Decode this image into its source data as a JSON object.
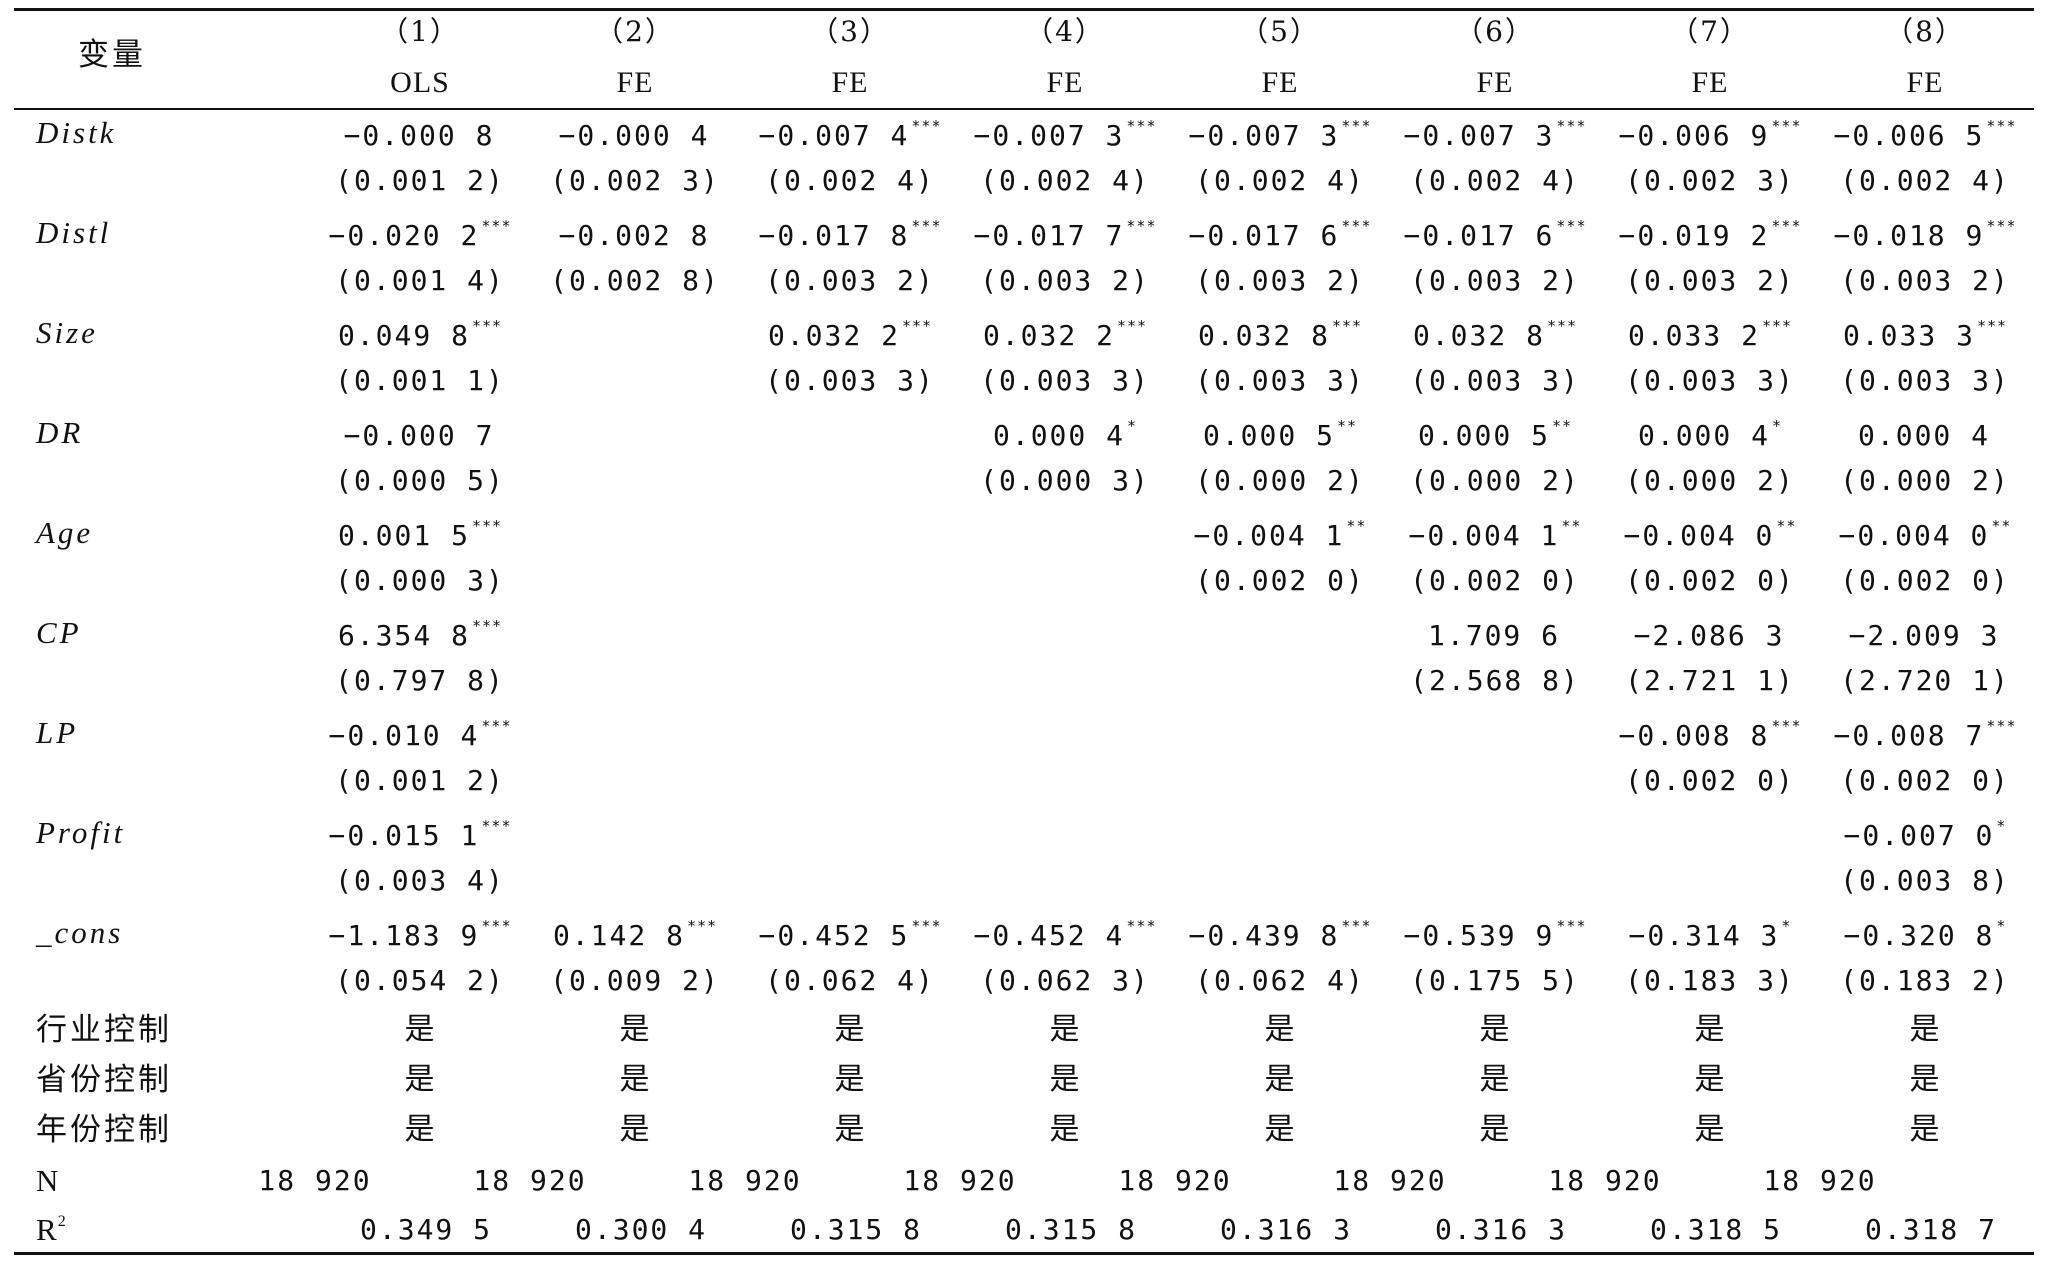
{
  "table": {
    "header": {
      "var_label": "变量",
      "col_nums": [
        "（1）",
        "（2）",
        "（3）",
        "（4）",
        "（5）",
        "（6）",
        "（7）",
        "（8）"
      ],
      "models": [
        "OLS",
        "FE",
        "FE",
        "FE",
        "FE",
        "FE",
        "FE",
        "FE"
      ]
    },
    "rows": [
      {
        "label": "Distk",
        "coef": [
          {
            "v": "−0.000 8",
            "s": ""
          },
          {
            "v": "−0.000 4",
            "s": ""
          },
          {
            "v": "−0.007 4",
            "s": "***"
          },
          {
            "v": "−0.007 3",
            "s": "***"
          },
          {
            "v": "−0.007 3",
            "s": "***"
          },
          {
            "v": "−0.007 3",
            "s": "***"
          },
          {
            "v": "−0.006 9",
            "s": "***"
          },
          {
            "v": "−0.006 5",
            "s": "***"
          }
        ],
        "se": [
          "(0.001 2)",
          "(0.002 3)",
          "(0.002 4)",
          "(0.002 4)",
          "(0.002 4)",
          "(0.002 4)",
          "(0.002 3)",
          "(0.002 4)"
        ]
      },
      {
        "label": "Distl",
        "coef": [
          {
            "v": "−0.020 2",
            "s": "***"
          },
          {
            "v": "−0.002 8",
            "s": ""
          },
          {
            "v": "−0.017 8",
            "s": "***"
          },
          {
            "v": "−0.017 7",
            "s": "***"
          },
          {
            "v": "−0.017 6",
            "s": "***"
          },
          {
            "v": "−0.017 6",
            "s": "***"
          },
          {
            "v": "−0.019 2",
            "s": "***"
          },
          {
            "v": "−0.018 9",
            "s": "***"
          }
        ],
        "se": [
          "(0.001 4)",
          "(0.002 8)",
          "(0.003 2)",
          "(0.003 2)",
          "(0.003 2)",
          "(0.003 2)",
          "(0.003 2)",
          "(0.003 2)"
        ]
      },
      {
        "label": "Size",
        "coef": [
          {
            "v": "0.049 8",
            "s": "***"
          },
          {
            "v": "",
            "s": ""
          },
          {
            "v": "0.032 2",
            "s": "***"
          },
          {
            "v": "0.032 2",
            "s": "***"
          },
          {
            "v": "0.032 8",
            "s": "***"
          },
          {
            "v": "0.032 8",
            "s": "***"
          },
          {
            "v": "0.033 2",
            "s": "***"
          },
          {
            "v": "0.033 3",
            "s": "***"
          }
        ],
        "se": [
          "(0.001 1)",
          "",
          "(0.003 3)",
          "(0.003 3)",
          "(0.003 3)",
          "(0.003 3)",
          "(0.003 3)",
          "(0.003 3)"
        ]
      },
      {
        "label": "DR",
        "coef": [
          {
            "v": "−0.000 7",
            "s": ""
          },
          {
            "v": "",
            "s": ""
          },
          {
            "v": "",
            "s": ""
          },
          {
            "v": "0.000 4",
            "s": "*"
          },
          {
            "v": "0.000 5",
            "s": "**"
          },
          {
            "v": "0.000 5",
            "s": "**"
          },
          {
            "v": "0.000 4",
            "s": "*"
          },
          {
            "v": "0.000 4",
            "s": ""
          }
        ],
        "se": [
          "(0.000 5)",
          "",
          "",
          "(0.000 3)",
          "(0.000 2)",
          "(0.000 2)",
          "(0.000 2)",
          "(0.000 2)"
        ]
      },
      {
        "label": "Age",
        "coef": [
          {
            "v": "0.001 5",
            "s": "***"
          },
          {
            "v": "",
            "s": ""
          },
          {
            "v": "",
            "s": ""
          },
          {
            "v": "",
            "s": ""
          },
          {
            "v": "−0.004 1",
            "s": "**"
          },
          {
            "v": "−0.004 1",
            "s": "**"
          },
          {
            "v": "−0.004 0",
            "s": "**"
          },
          {
            "v": "−0.004 0",
            "s": "**"
          }
        ],
        "se": [
          "(0.000 3)",
          "",
          "",
          "",
          "(0.002 0)",
          "(0.002 0)",
          "(0.002 0)",
          "(0.002 0)"
        ]
      },
      {
        "label": "CP",
        "coef": [
          {
            "v": "6.354 8",
            "s": "***"
          },
          {
            "v": "",
            "s": ""
          },
          {
            "v": "",
            "s": ""
          },
          {
            "v": "",
            "s": ""
          },
          {
            "v": "",
            "s": ""
          },
          {
            "v": "1.709 6",
            "s": ""
          },
          {
            "v": "−2.086 3",
            "s": ""
          },
          {
            "v": "−2.009 3",
            "s": ""
          }
        ],
        "se": [
          "(0.797 8)",
          "",
          "",
          "",
          "",
          "(2.568 8)",
          "(2.721 1)",
          "(2.720 1)"
        ]
      },
      {
        "label": "LP",
        "coef": [
          {
            "v": "−0.010 4",
            "s": "***"
          },
          {
            "v": "",
            "s": ""
          },
          {
            "v": "",
            "s": ""
          },
          {
            "v": "",
            "s": ""
          },
          {
            "v": "",
            "s": ""
          },
          {
            "v": "",
            "s": ""
          },
          {
            "v": "−0.008 8",
            "s": "***"
          },
          {
            "v": "−0.008 7",
            "s": "***"
          }
        ],
        "se": [
          "(0.001 2)",
          "",
          "",
          "",
          "",
          "",
          "(0.002 0)",
          "(0.002 0)"
        ]
      },
      {
        "label": "Profit",
        "coef": [
          {
            "v": "−0.015 1",
            "s": "***"
          },
          {
            "v": "",
            "s": ""
          },
          {
            "v": "",
            "s": ""
          },
          {
            "v": "",
            "s": ""
          },
          {
            "v": "",
            "s": ""
          },
          {
            "v": "",
            "s": ""
          },
          {
            "v": "",
            "s": ""
          },
          {
            "v": "−0.007 0",
            "s": "*"
          }
        ],
        "se": [
          "(0.003 4)",
          "",
          "",
          "",
          "",
          "",
          "",
          "(0.003 8)"
        ]
      },
      {
        "label": "_cons",
        "coef": [
          {
            "v": "−1.183 9",
            "s": "***"
          },
          {
            "v": "0.142 8",
            "s": "***"
          },
          {
            "v": "−0.452 5",
            "s": "***"
          },
          {
            "v": "−0.452 4",
            "s": "***"
          },
          {
            "v": "−0.439 8",
            "s": "***"
          },
          {
            "v": "−0.539 9",
            "s": "***"
          },
          {
            "v": "−0.314 3",
            "s": "*"
          },
          {
            "v": "−0.320 8",
            "s": "*"
          }
        ],
        "se": [
          "(0.054 2)",
          "(0.009 2)",
          "(0.062 4)",
          "(0.062 3)",
          "(0.062 4)",
          "(0.175 5)",
          "(0.183 3)",
          "(0.183 2)"
        ]
      }
    ],
    "controls": [
      {
        "label": "行业控制",
        "values": [
          "是",
          "是",
          "是",
          "是",
          "是",
          "是",
          "是",
          "是"
        ]
      },
      {
        "label": "省份控制",
        "values": [
          "是",
          "是",
          "是",
          "是",
          "是",
          "是",
          "是",
          "是"
        ]
      },
      {
        "label": "年份控制",
        "values": [
          "是",
          "是",
          "是",
          "是",
          "是",
          "是",
          "是",
          "是"
        ]
      }
    ],
    "n_row": {
      "label": "N",
      "values": [
        "18 920",
        "18 920",
        "18 920",
        "18 920",
        "18 920",
        "18 920",
        "18 920",
        "18 920"
      ]
    },
    "r2_row": {
      "label": "R",
      "label_sup": "2",
      "values": [
        "0.349 5",
        "0.300 4",
        "0.315 8",
        "0.315 8",
        "0.316 3",
        "0.316 3",
        "0.318 5",
        "0.318 7"
      ]
    }
  }
}
